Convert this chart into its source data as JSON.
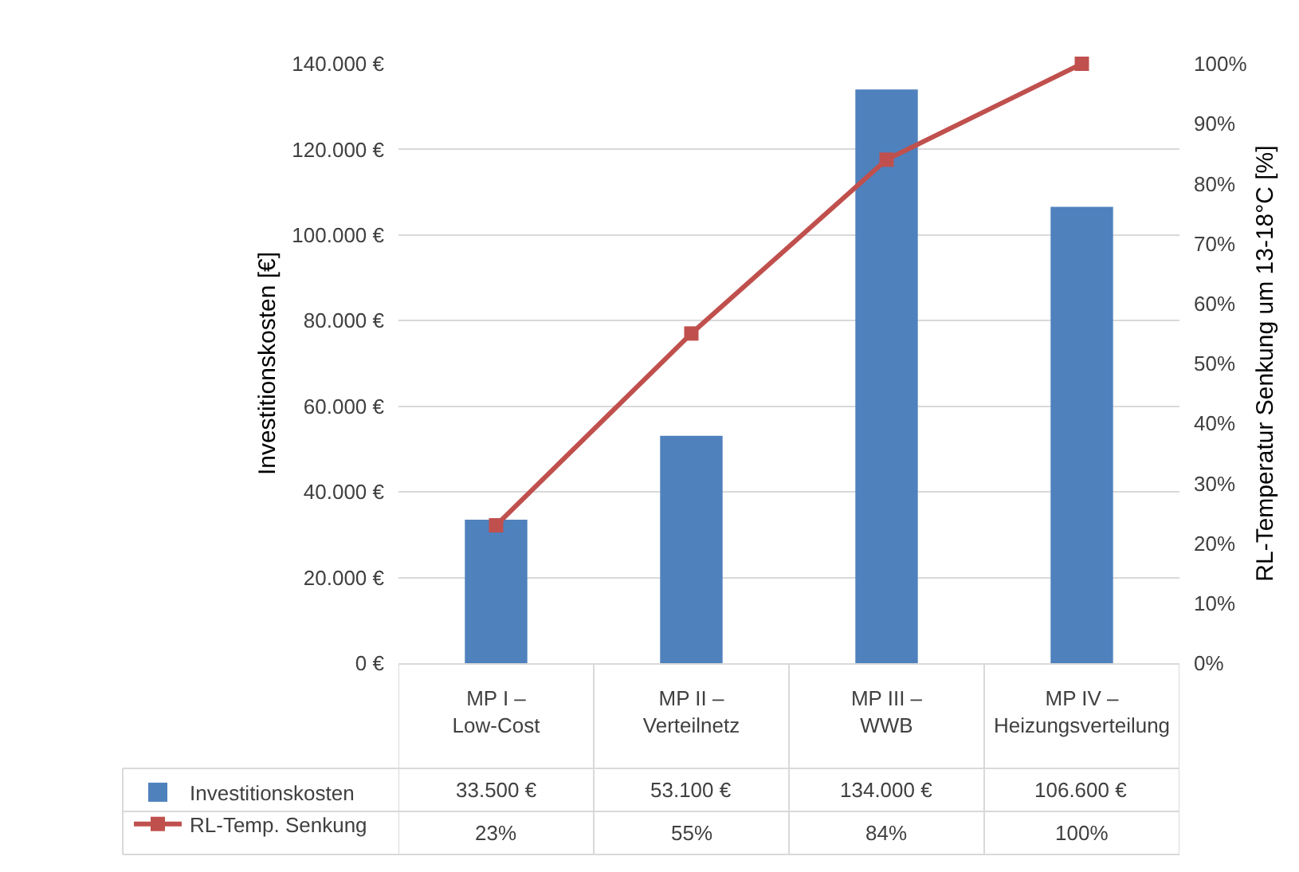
{
  "chart_data": {
    "type": "bar",
    "categories": [
      "MP I – Low-Cost",
      "MP II – Verteilnetz",
      "MP III – WWB",
      "MP IV – Heizungsverteilung"
    ],
    "ylabel": "Investitionskosten [€]",
    "y2label": "RL-Temperatur Senkung um 13-18°C [%]",
    "series": [
      {
        "name": "Investitionskosten",
        "color": "#4f81bd",
        "values": [
          33500,
          53100,
          134000,
          106600
        ],
        "value_labels": [
          "33.500 €",
          "53.100 €",
          "134.000 €",
          "106.600 €"
        ]
      },
      {
        "name": "RL-Temp. Senkung",
        "type": "line",
        "axis": "y2",
        "color": "#c0504d",
        "values": [
          23,
          55,
          84,
          100
        ],
        "value_labels": [
          "23%",
          "55%",
          "84%",
          "100%"
        ]
      }
    ],
    "ylim": [
      0,
      140000
    ],
    "yticks": [
      {
        "value": 0,
        "label": "0 €"
      },
      {
        "value": 20000,
        "label": "20.000 €"
      },
      {
        "value": 40000,
        "label": "40.000 €"
      },
      {
        "value": 60000,
        "label": "60.000 €"
      },
      {
        "value": 80000,
        "label": "80.000 €"
      },
      {
        "value": 100000,
        "label": "100.000 €"
      },
      {
        "value": 120000,
        "label": "120.000 €"
      },
      {
        "value": 140000,
        "label": "140.000 €"
      }
    ],
    "y2lim": [
      0,
      100
    ],
    "y2ticks": [
      {
        "value": 0,
        "label": "0%"
      },
      {
        "value": 10,
        "label": "10%"
      },
      {
        "value": 20,
        "label": "20%"
      },
      {
        "value": 30,
        "label": "30%"
      },
      {
        "value": 40,
        "label": "40%"
      },
      {
        "value": 50,
        "label": "50%"
      },
      {
        "value": 60,
        "label": "60%"
      },
      {
        "value": 70,
        "label": "70%"
      },
      {
        "value": 80,
        "label": "80%"
      },
      {
        "value": 90,
        "label": "90%"
      },
      {
        "value": 100,
        "label": "100%"
      }
    ],
    "grid": "y",
    "legend": "bottom left",
    "marker": "square",
    "line_style": "solid"
  }
}
